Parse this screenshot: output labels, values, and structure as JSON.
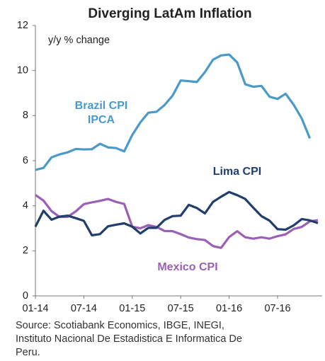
{
  "chart_data": {
    "type": "line",
    "title": "Diverging LatAm Inflation",
    "y_label": "y/y % change",
    "categories": [
      "01-14",
      null,
      null,
      null,
      null,
      null,
      "07-14",
      null,
      null,
      null,
      null,
      null,
      "01-15",
      null,
      null,
      null,
      null,
      null,
      "07-15",
      null,
      null,
      null,
      null,
      null,
      "01-16",
      null,
      null,
      null,
      null,
      null,
      "07-16",
      null,
      null,
      null,
      null,
      null
    ],
    "series": [
      {
        "name": "Brazil CPI IPCA",
        "label_lines": [
          "Brazil CPI",
          "IPCA"
        ],
        "color": "#4a9ac9",
        "values": [
          5.59,
          5.68,
          6.15,
          6.28,
          6.37,
          6.52,
          6.5,
          6.51,
          6.75,
          6.59,
          6.56,
          6.41,
          7.14,
          7.7,
          8.13,
          8.17,
          8.47,
          8.89,
          9.56,
          9.53,
          9.49,
          9.93,
          10.48,
          10.67,
          10.71,
          10.36,
          9.39,
          9.28,
          9.32,
          8.84,
          8.74,
          8.97,
          8.48,
          7.87,
          6.99,
          null
        ]
      },
      {
        "name": "Mexico CPI",
        "color": "#9b5fb5",
        "values": [
          4.48,
          4.23,
          3.76,
          3.5,
          3.51,
          3.75,
          4.07,
          4.15,
          4.22,
          4.3,
          4.17,
          4.08,
          3.07,
          3.0,
          3.14,
          3.06,
          2.88,
          2.87,
          2.74,
          2.59,
          2.52,
          2.48,
          2.21,
          2.13,
          2.61,
          2.87,
          2.6,
          2.54,
          2.6,
          2.54,
          2.65,
          2.73,
          2.97,
          3.06,
          3.31,
          3.36
        ]
      },
      {
        "name": "Lima CPI",
        "color": "#1f3e6e",
        "values": [
          3.07,
          3.78,
          3.38,
          3.52,
          3.56,
          3.45,
          3.33,
          2.69,
          2.74,
          3.09,
          3.16,
          3.22,
          3.07,
          2.77,
          3.02,
          3.02,
          3.37,
          3.54,
          3.56,
          4.04,
          3.9,
          3.66,
          4.17,
          4.4,
          4.61,
          4.47,
          4.3,
          3.91,
          3.54,
          3.34,
          2.96,
          2.94,
          3.13,
          3.41,
          3.35,
          3.23
        ]
      }
    ],
    "ylim": [
      0,
      12
    ],
    "yticks": [
      0,
      2,
      4,
      6,
      8,
      10,
      12
    ],
    "source_lines": [
      "Source: Scotiabank Economics, IBGE, INEGI,",
      "Instituto Nacional De Estadistica E Informatica De",
      "Peru."
    ]
  }
}
